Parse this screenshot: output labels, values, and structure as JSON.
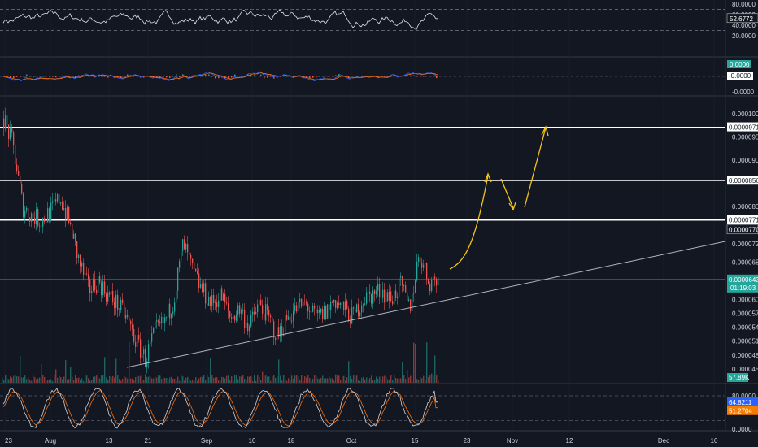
{
  "colors": {
    "background": "#131722",
    "grid": "#1f2330",
    "up": "#26a69a",
    "down": "#ef5350",
    "line_white": "#ffffff",
    "trend": "#b2b5be",
    "projection": "#f5c518",
    "price_tag_teal": "#26a69a",
    "volume_tag_teal": "#26a69a",
    "stoch_k_tag": "#2962ff",
    "stoch_d_tag": "#f57c00"
  },
  "x_axis": {
    "labels": [
      "23",
      "Aug",
      "13",
      "21",
      "Sep",
      "10",
      "18",
      "Oct",
      "15",
      "23",
      "Nov",
      "12",
      "Dec",
      "10"
    ]
  },
  "rsi": {
    "ticks": [
      "80.0000",
      "60.0000",
      "40.0000",
      "20.0000"
    ],
    "current_value": "52.6772"
  },
  "macd": {
    "ticks": [
      "0.0000",
      "-0.0000"
    ],
    "tag_upper": "0.0000",
    "tag_lower": "-0.0000"
  },
  "stoch": {
    "ticks": [
      "80.0000",
      "0.0000"
    ],
    "k_value": "64.8211",
    "d_value": "51.2704"
  },
  "volume": {
    "current_value": "57.89K"
  },
  "price_axis": {
    "ticks": [
      "0.0001000",
      "0.0000950",
      "0.0000900",
      "0.0000800",
      "0.0000720",
      "0.0000680",
      "0.0000600",
      "0.0000570",
      "0.0000540",
      "0.0000510",
      "0.0000480",
      "0.0000450"
    ],
    "level_tags": [
      "0.0000971",
      "0.0000856",
      "0.0000771",
      "0.0000770"
    ],
    "current_price": "0.0000643",
    "countdown": "01:19:03"
  },
  "chart_data": [
    {
      "type": "line",
      "panel": "rsi",
      "y_range": [
        0,
        100
      ],
      "reference_lines": [
        70,
        30
      ],
      "last_value": 52.6772
    },
    {
      "type": "line",
      "panel": "macd",
      "series_count": 2
    },
    {
      "type": "candlestick",
      "panel": "price",
      "x_labels": [
        "23",
        "Aug",
        "13",
        "21",
        "Sep",
        "10",
        "18",
        "Oct",
        "15",
        "23",
        "Nov",
        "12",
        "Dec",
        "10"
      ],
      "y_range": [
        4.35e-05,
        0.0001005
      ],
      "horizontal_levels": [
        9.71e-05,
        8.56e-05,
        7.71e-05
      ],
      "current_price": 6.43e-05,
      "trendline": {
        "from_label": "13",
        "to_label": "10"
      },
      "projection": "curve up to 0.0000856, dip to 0.0000771, rise to 0.0000971",
      "approx_closes": [
        9.9e-05,
        9.3e-05,
        8e-05,
        7.8e-05,
        7.7e-05,
        7.9e-05,
        8.2e-05,
        7.6e-05,
        6.8e-05,
        6.2e-05,
        6.4e-05,
        6.1e-05,
        5.9e-05,
        5.6e-05,
        5.1e-05,
        4.7e-05,
        5.3e-05,
        5.5e-05,
        6e-05,
        7.2e-05,
        6.6e-05,
        6.2e-05,
        5.9e-05,
        6.1e-05,
        5.6e-05,
        5.8e-05,
        5.4e-05,
        5.9e-05,
        5.6e-05,
        5.2e-05,
        5.6e-05,
        5.8e-05,
        5.9e-05,
        5.6e-05,
        5.7e-05,
        6e-05,
        5.8e-05,
        5.6e-05,
        6e-05,
        6.1e-05,
        6.2e-05,
        6e-05,
        6.3e-05,
        5.8e-05,
        7e-05,
        6.4e-05,
        6.43e-05
      ]
    },
    {
      "type": "bar",
      "panel": "volume",
      "last_value_label": "57.89K"
    },
    {
      "type": "line",
      "panel": "stoch",
      "y_range": [
        0,
        100
      ],
      "reference_lines": [
        80,
        20
      ],
      "k_last": 64.8211,
      "d_last": 51.2704
    }
  ]
}
